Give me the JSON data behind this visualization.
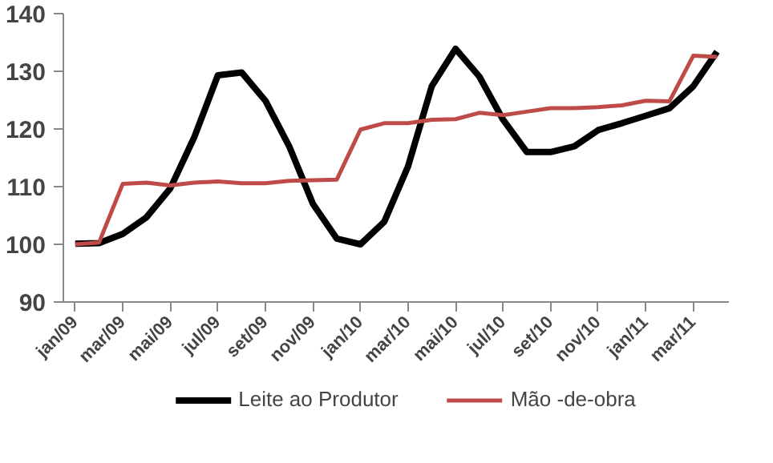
{
  "chart_data": {
    "type": "line",
    "categories": [
      "jan/09",
      null,
      "mar/09",
      null,
      "mai/09",
      null,
      "jul/09",
      null,
      "set/09",
      null,
      "nov/09",
      null,
      "jan/10",
      null,
      "mar/10",
      null,
      "mai/10",
      null,
      "jul/10",
      null,
      "set/10",
      null,
      "nov/10",
      null,
      "jan/11",
      null,
      "mar/11",
      null
    ],
    "ylim": [
      90,
      140
    ],
    "yticks": [
      90,
      100,
      110,
      120,
      130,
      140
    ],
    "grid": false,
    "legend": "bottom",
    "marker": "none",
    "series": [
      {
        "name": "Leite ao Produtor",
        "color": "#000000",
        "values": [
          100.1,
          100.2,
          101.8,
          104.7,
          109.7,
          118.5,
          129.3,
          129.8,
          124.9,
          117,
          107,
          101,
          100,
          103.9,
          113.5,
          127.4,
          133.9,
          129.1,
          121.6,
          116,
          116,
          117,
          119.8,
          121,
          122.3,
          123.6,
          127.4,
          133.4
        ]
      },
      {
        "name": "Mão -de-obra",
        "color": "#be4b48",
        "values": [
          100,
          100.3,
          110.5,
          110.7,
          110.2,
          110.7,
          110.9,
          110.6,
          110.6,
          111,
          111.1,
          111.2,
          119.9,
          121,
          121,
          121.6,
          121.7,
          122.8,
          122.4,
          123,
          123.6,
          123.6,
          123.8,
          124.1,
          124.9,
          124.8,
          132.7,
          132.5
        ]
      }
    ]
  }
}
